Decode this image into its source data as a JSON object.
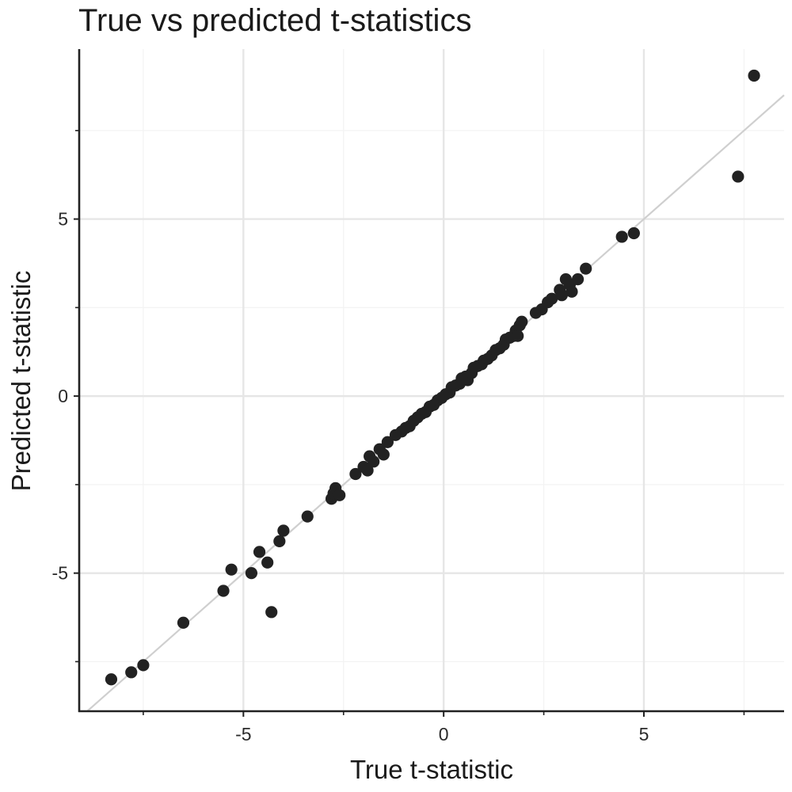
{
  "chart_data": {
    "type": "scatter",
    "title": "True vs predicted t-statistics",
    "xlabel": "True t-statistic",
    "ylabel": "Predicted t-statistic",
    "xlim": [
      -9.1,
      8.5
    ],
    "ylim": [
      -8.9,
      9.8
    ],
    "x_ticks": [
      -5,
      0,
      5
    ],
    "y_ticks": [
      -5,
      0,
      5
    ],
    "x_tick_labels": [
      "-5",
      "0",
      "5"
    ],
    "y_tick_labels": [
      "-5",
      "0",
      "5"
    ],
    "grid": true,
    "reference_line": "y = x",
    "colors": {
      "points": "#222222",
      "grid": "#e6e6e6",
      "minor_grid": "#f3f3f3",
      "reference_line": "#cfcfcf",
      "axis": "#222222"
    },
    "points": [
      {
        "x": -8.3,
        "y": -8.0
      },
      {
        "x": -7.8,
        "y": -7.8
      },
      {
        "x": -7.5,
        "y": -7.6
      },
      {
        "x": -6.5,
        "y": -6.4
      },
      {
        "x": -5.5,
        "y": -5.5
      },
      {
        "x": -5.3,
        "y": -4.9
      },
      {
        "x": -4.8,
        "y": -5.0
      },
      {
        "x": -4.6,
        "y": -4.4
      },
      {
        "x": -4.4,
        "y": -4.7
      },
      {
        "x": -4.3,
        "y": -6.1
      },
      {
        "x": -4.1,
        "y": -4.1
      },
      {
        "x": -4.0,
        "y": -3.8
      },
      {
        "x": -3.4,
        "y": -3.4
      },
      {
        "x": -2.8,
        "y": -2.9
      },
      {
        "x": -2.75,
        "y": -2.75
      },
      {
        "x": -2.7,
        "y": -2.6
      },
      {
        "x": -2.6,
        "y": -2.8
      },
      {
        "x": -2.2,
        "y": -2.2
      },
      {
        "x": -2.0,
        "y": -2.0
      },
      {
        "x": -1.9,
        "y": -2.1
      },
      {
        "x": -1.85,
        "y": -1.7
      },
      {
        "x": -1.75,
        "y": -1.85
      },
      {
        "x": -1.6,
        "y": -1.5
      },
      {
        "x": -1.5,
        "y": -1.65
      },
      {
        "x": -1.4,
        "y": -1.3
      },
      {
        "x": -1.2,
        "y": -1.1
      },
      {
        "x": -1.05,
        "y": -1.0
      },
      {
        "x": -0.95,
        "y": -0.9
      },
      {
        "x": -0.85,
        "y": -0.85
      },
      {
        "x": -0.75,
        "y": -0.7
      },
      {
        "x": -0.65,
        "y": -0.6
      },
      {
        "x": -0.55,
        "y": -0.5
      },
      {
        "x": -0.45,
        "y": -0.45
      },
      {
        "x": -0.35,
        "y": -0.3
      },
      {
        "x": -0.25,
        "y": -0.25
      },
      {
        "x": -0.15,
        "y": -0.12
      },
      {
        "x": -0.05,
        "y": -0.05
      },
      {
        "x": 0.05,
        "y": 0.05
      },
      {
        "x": 0.15,
        "y": 0.1
      },
      {
        "x": 0.2,
        "y": 0.25
      },
      {
        "x": 0.3,
        "y": 0.3
      },
      {
        "x": 0.4,
        "y": 0.35
      },
      {
        "x": 0.45,
        "y": 0.5
      },
      {
        "x": 0.55,
        "y": 0.55
      },
      {
        "x": 0.6,
        "y": 0.45
      },
      {
        "x": 0.7,
        "y": 0.65
      },
      {
        "x": 0.75,
        "y": 0.8
      },
      {
        "x": 0.85,
        "y": 0.85
      },
      {
        "x": 0.95,
        "y": 0.9
      },
      {
        "x": 1.0,
        "y": 1.0
      },
      {
        "x": 1.1,
        "y": 1.05
      },
      {
        "x": 1.2,
        "y": 1.15
      },
      {
        "x": 1.3,
        "y": 1.3
      },
      {
        "x": 1.4,
        "y": 1.35
      },
      {
        "x": 1.5,
        "y": 1.45
      },
      {
        "x": 1.55,
        "y": 1.6
      },
      {
        "x": 1.65,
        "y": 1.65
      },
      {
        "x": 1.75,
        "y": 1.7
      },
      {
        "x": 1.8,
        "y": 1.85
      },
      {
        "x": 1.85,
        "y": 1.7
      },
      {
        "x": 1.9,
        "y": 2.0
      },
      {
        "x": 1.95,
        "y": 2.1
      },
      {
        "x": 2.3,
        "y": 2.35
      },
      {
        "x": 2.45,
        "y": 2.45
      },
      {
        "x": 2.6,
        "y": 2.65
      },
      {
        "x": 2.7,
        "y": 2.75
      },
      {
        "x": 2.9,
        "y": 3.0
      },
      {
        "x": 2.95,
        "y": 2.85
      },
      {
        "x": 3.05,
        "y": 3.3
      },
      {
        "x": 3.15,
        "y": 3.15
      },
      {
        "x": 3.2,
        "y": 2.95
      },
      {
        "x": 3.35,
        "y": 3.3
      },
      {
        "x": 3.55,
        "y": 3.6
      },
      {
        "x": 4.45,
        "y": 4.5
      },
      {
        "x": 4.75,
        "y": 4.6
      },
      {
        "x": 7.35,
        "y": 6.2
      },
      {
        "x": 7.75,
        "y": 9.05
      }
    ]
  }
}
